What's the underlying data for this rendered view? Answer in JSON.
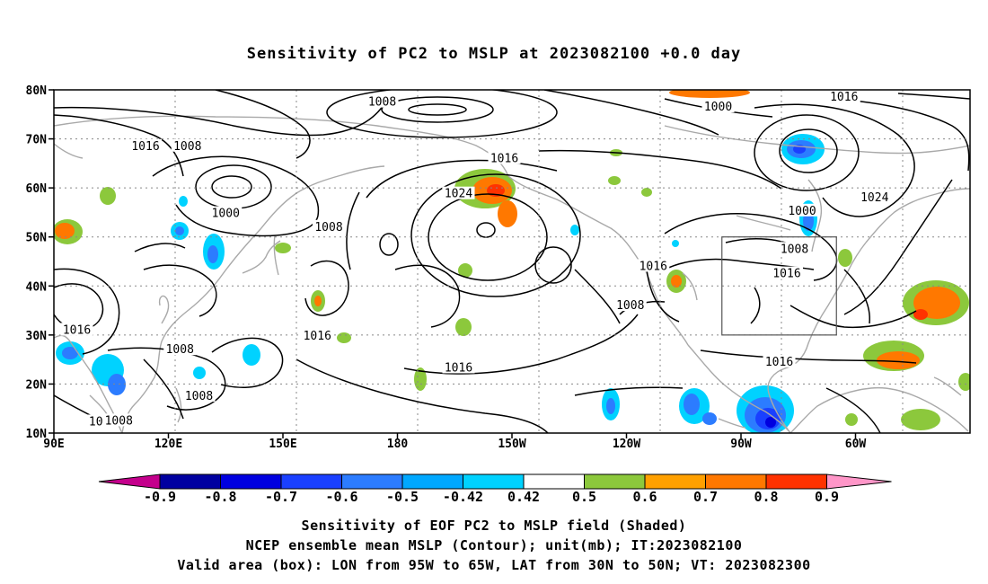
{
  "title": "Sensitivity of PC2 to MSLP at 2023082100 +0.0 day",
  "lat_labels": [
    "80N",
    "70N",
    "60N",
    "50N",
    "40N",
    "30N",
    "20N",
    "10N"
  ],
  "lon_labels": [
    "90E",
    "120E",
    "150E",
    "180",
    "150W",
    "120W",
    "90W",
    "60W"
  ],
  "contour_labels": [
    {
      "text": "1008",
      "lon": 176,
      "lat": 77.5
    },
    {
      "text": "1000",
      "lon": 264,
      "lat": 76.5
    },
    {
      "text": "1016",
      "lon": 297,
      "lat": 78.5
    },
    {
      "text": "1016",
      "lon": 114,
      "lat": 68.5
    },
    {
      "text": "1008",
      "lon": 125,
      "lat": 68.5
    },
    {
      "text": "1016",
      "lon": 208,
      "lat": 66.0
    },
    {
      "text": "1024",
      "lon": 196,
      "lat": 58.8
    },
    {
      "text": "1000",
      "lon": 135,
      "lat": 54.8
    },
    {
      "text": "1008",
      "lon": 162,
      "lat": 52.0
    },
    {
      "text": "1000",
      "lon": 286,
      "lat": 55.3
    },
    {
      "text": "1024",
      "lon": 305,
      "lat": 58.0
    },
    {
      "text": "1008",
      "lon": 284,
      "lat": 47.5
    },
    {
      "text": "1016",
      "lon": 282,
      "lat": 42.5
    },
    {
      "text": "1016",
      "lon": 247,
      "lat": 44.0
    },
    {
      "text": "1008",
      "lon": 241,
      "lat": 36.0
    },
    {
      "text": "1016",
      "lon": 96,
      "lat": 31.0
    },
    {
      "text": "1008",
      "lon": 123,
      "lat": 27.0
    },
    {
      "text": "1016",
      "lon": 159,
      "lat": 29.8
    },
    {
      "text": "1016",
      "lon": 196,
      "lat": 23.3
    },
    {
      "text": "1016",
      "lon": 280,
      "lat": 24.5
    },
    {
      "text": "1008",
      "lon": 128,
      "lat": 17.5
    },
    {
      "text": "1008",
      "lon": 107,
      "lat": 12.5
    },
    {
      "text": "10",
      "lon": 101,
      "lat": 12.3
    }
  ],
  "valid_box": {
    "lon_min": 265,
    "lon_max": 295,
    "lat_min": 30,
    "lat_max": 50
  },
  "colorbar": {
    "labels": [
      "-0.9",
      "-0.8",
      "-0.7",
      "-0.6",
      "-0.5",
      "-0.42",
      "0.42",
      "0.5",
      "0.6",
      "0.7",
      "0.8",
      "0.9"
    ],
    "colors": [
      "#c4008c",
      "#0000a0",
      "#0000e0",
      "#1a40ff",
      "#2c7cff",
      "#00a8ff",
      "#00d2ff",
      "#ffffff",
      "#8cc83c",
      "#ffa000",
      "#ff7800",
      "#ff3200",
      "#ff0000",
      "#ff96c8"
    ]
  },
  "caption": {
    "line1": "Sensitivity of EOF PC2 to MSLP field (Shaded)",
    "line2": "NCEP ensemble mean MSLP (Contour); unit(mb); IT:2023082100",
    "line3": "Valid area (box): LON from 95W to 65W, LAT from 30N to 50N; VT: 2023082300"
  }
}
